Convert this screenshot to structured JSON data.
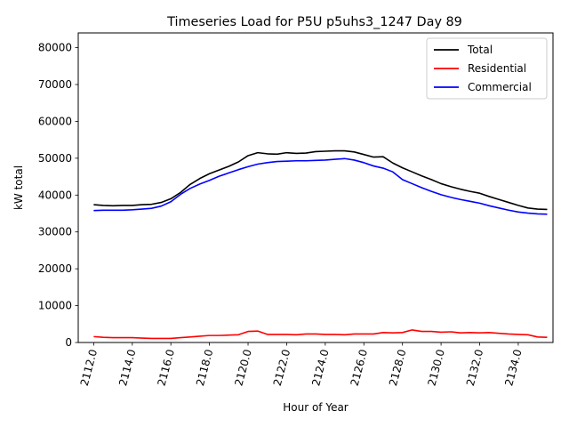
{
  "chart_data": {
    "type": "line",
    "title": "Timeseries Load for P5U p5uhs3_1247  Day 89",
    "xlabel": "Hour of Year",
    "ylabel": "kW total",
    "xlim": [
      2111.2,
      2135.8
    ],
    "ylim": [
      0,
      84000
    ],
    "xticks": [
      2112,
      2114,
      2116,
      2118,
      2120,
      2122,
      2124,
      2126,
      2128,
      2130,
      2132,
      2134
    ],
    "xtick_labels": [
      "2112.0",
      "2114.0",
      "2116.0",
      "2118.0",
      "2120.0",
      "2122.0",
      "2124.0",
      "2126.0",
      "2128.0",
      "2130.0",
      "2132.0",
      "2134.0"
    ],
    "yticks": [
      0,
      10000,
      20000,
      30000,
      40000,
      50000,
      60000,
      70000,
      80000
    ],
    "ytick_labels": [
      "0",
      "10000",
      "20000",
      "30000",
      "40000",
      "50000",
      "60000",
      "70000",
      "80000"
    ],
    "legend_position": "top-right",
    "x": [
      2112.0,
      2112.5,
      2113.0,
      2113.5,
      2114.0,
      2114.5,
      2115.0,
      2115.5,
      2116.0,
      2116.5,
      2117.0,
      2117.5,
      2118.0,
      2118.5,
      2119.0,
      2119.5,
      2120.0,
      2120.5,
      2121.0,
      2121.5,
      2122.0,
      2122.5,
      2123.0,
      2123.5,
      2124.0,
      2124.5,
      2125.0,
      2125.5,
      2126.0,
      2126.5,
      2127.0,
      2127.5,
      2128.0,
      2128.5,
      2129.0,
      2129.5,
      2130.0,
      2130.5,
      2131.0,
      2131.5,
      2132.0,
      2132.5,
      2133.0,
      2133.5,
      2134.0,
      2134.5,
      2135.0,
      2135.5
    ],
    "series": [
      {
        "name": "Total",
        "color": "#000000",
        "values": [
          37400,
          37200,
          37100,
          37200,
          37200,
          37400,
          37500,
          38000,
          39000,
          40700,
          42900,
          44500,
          45800,
          46800,
          47800,
          49000,
          50700,
          51500,
          51200,
          51100,
          51500,
          51300,
          51400,
          51800,
          51900,
          52000,
          52000,
          51700,
          51000,
          50300,
          50400,
          48700,
          47400,
          46300,
          45200,
          44200,
          43100,
          42300,
          41600,
          41000,
          40500,
          39600,
          38800,
          38000,
          37200,
          36500,
          36200,
          36100
        ]
      },
      {
        "name": "Residential",
        "color": "#ff0000",
        "values": [
          1600,
          1400,
          1300,
          1300,
          1300,
          1200,
          1100,
          1100,
          1100,
          1300,
          1500,
          1700,
          1900,
          1900,
          2000,
          2100,
          3000,
          3100,
          2200,
          2200,
          2200,
          2100,
          2300,
          2300,
          2200,
          2200,
          2100,
          2300,
          2300,
          2300,
          2700,
          2600,
          2700,
          3400,
          3000,
          3000,
          2800,
          2900,
          2600,
          2700,
          2600,
          2700,
          2500,
          2300,
          2200,
          2100,
          1500,
          1400
        ]
      },
      {
        "name": "Commercial",
        "color": "#0000ff",
        "values": [
          35800,
          35900,
          35900,
          35900,
          36000,
          36200,
          36400,
          37000,
          38200,
          40200,
          41800,
          43000,
          44000,
          45100,
          46000,
          46900,
          47700,
          48400,
          48800,
          49100,
          49200,
          49300,
          49300,
          49400,
          49500,
          49700,
          49900,
          49500,
          48800,
          47900,
          47300,
          46300,
          44200,
          43100,
          42000,
          41000,
          40100,
          39400,
          38800,
          38300,
          37800,
          37100,
          36500,
          35900,
          35400,
          35100,
          34900,
          34800
        ]
      }
    ]
  }
}
